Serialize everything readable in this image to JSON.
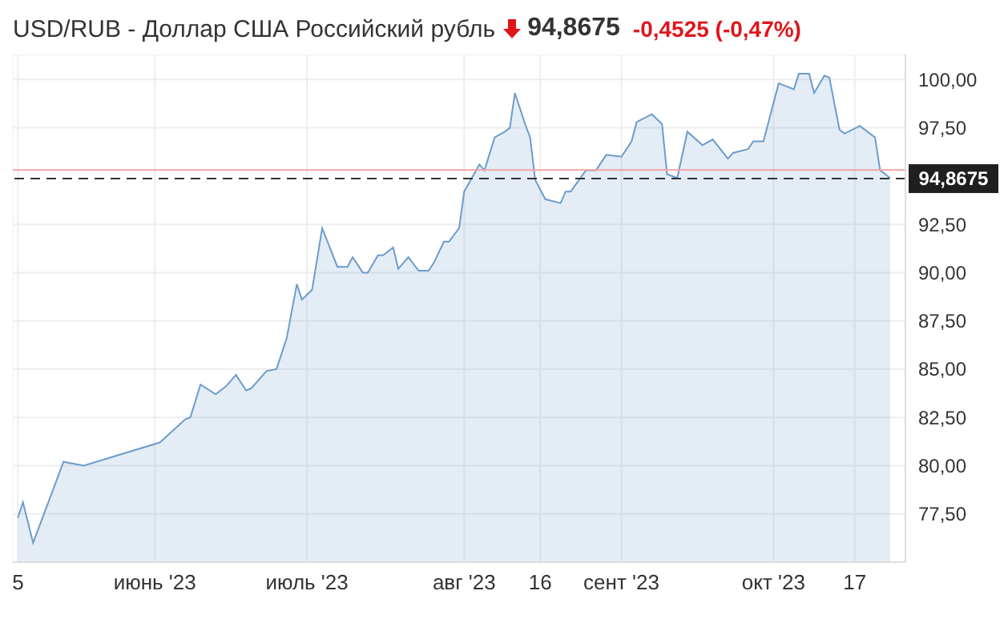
{
  "chart_data": {
    "type": "area",
    "title": "USD/RUB - Доллар США Российский рубль",
    "annotations": [
      "94,8675",
      "-0,4525 (-0,47%)"
    ],
    "x": [
      "2023-05-05",
      "2023-05-06",
      "2023-05-08",
      "2023-05-14",
      "2023-05-18",
      "2023-06-02",
      "2023-06-07",
      "2023-06-08",
      "2023-06-10",
      "2023-06-13",
      "2023-06-15",
      "2023-06-17",
      "2023-06-19",
      "2023-06-20",
      "2023-06-23",
      "2023-06-25",
      "2023-06-27",
      "2023-06-29",
      "2023-06-30",
      "2023-07-02",
      "2023-07-04",
      "2023-07-07",
      "2023-07-09",
      "2023-07-10",
      "2023-07-12",
      "2023-07-13",
      "2023-07-15",
      "2023-07-16",
      "2023-07-18",
      "2023-07-19",
      "2023-07-21",
      "2023-07-23",
      "2023-07-25",
      "2023-07-26",
      "2023-07-28",
      "2023-07-29",
      "2023-07-31",
      "2023-08-01",
      "2023-08-04",
      "2023-08-05",
      "2023-08-07",
      "2023-08-09",
      "2023-08-10",
      "2023-08-11",
      "2023-08-13",
      "2023-08-14",
      "2023-08-15",
      "2023-08-17",
      "2023-08-20",
      "2023-08-21",
      "2023-08-22",
      "2023-08-25",
      "2023-08-27",
      "2023-08-29",
      "2023-09-01",
      "2023-09-03",
      "2023-09-04",
      "2023-09-07",
      "2023-09-09",
      "2023-09-10",
      "2023-09-12",
      "2023-09-14",
      "2023-09-17",
      "2023-09-19",
      "2023-09-22",
      "2023-09-23",
      "2023-09-26",
      "2023-09-27",
      "2023-09-29",
      "2023-10-02",
      "2023-10-05",
      "2023-10-06",
      "2023-10-08",
      "2023-10-09",
      "2023-10-11",
      "2023-10-12",
      "2023-10-14",
      "2023-10-15",
      "2023-10-18",
      "2023-10-21",
      "2023-10-22",
      "2023-10-24"
    ],
    "series": [
      {
        "color": "#6c9ccb",
        "values": [
          77.3,
          78.1,
          76.0,
          80.2,
          80.0,
          81.2,
          82.4,
          82.5,
          84.2,
          83.7,
          84.1,
          84.7,
          83.9,
          84.0,
          84.9,
          85.0,
          86.6,
          89.4,
          88.6,
          89.1,
          92.3,
          90.3,
          90.3,
          90.8,
          90.0,
          90.0,
          90.9,
          90.9,
          91.3,
          90.2,
          90.8,
          90.1,
          90.1,
          90.5,
          91.6,
          91.6,
          92.3,
          94.2,
          95.6,
          95.3,
          97.0,
          97.3,
          97.5,
          99.3,
          97.7,
          97.0,
          94.8,
          93.8,
          93.6,
          94.2,
          94.2,
          95.3,
          95.3,
          96.1,
          96.0,
          96.8,
          97.8,
          98.2,
          97.7,
          95.1,
          94.9,
          97.3,
          96.6,
          96.9,
          95.9,
          96.2,
          96.4,
          96.8,
          96.8,
          99.8,
          99.5,
          100.3,
          100.3,
          99.3,
          100.2,
          100.1,
          97.4,
          97.2,
          97.6,
          97.0,
          95.3,
          94.9
        ]
      }
    ],
    "xlim": [
      "2023-05-04",
      "2023-10-27"
    ],
    "xticks": [
      {
        "value": "2023-05-05",
        "label": "5"
      },
      {
        "value": "2023-06-01",
        "label": "июнь '23"
      },
      {
        "value": "2023-07-01",
        "label": "июль '23"
      },
      {
        "value": "2023-08-01",
        "label": "авг '23"
      },
      {
        "value": "2023-08-16",
        "label": "16"
      },
      {
        "value": "2023-09-01",
        "label": "сент '23"
      },
      {
        "value": "2023-10-01",
        "label": "окт '23"
      },
      {
        "value": "2023-10-17",
        "label": "17"
      }
    ],
    "ylim": [
      75,
      101.3
    ],
    "yticks": [
      {
        "value": 77.5,
        "label": "77,50"
      },
      {
        "value": 80,
        "label": "80,00"
      },
      {
        "value": 82.5,
        "label": "82,50"
      },
      {
        "value": 85,
        "label": "85,00"
      },
      {
        "value": 87.5,
        "label": "87,50"
      },
      {
        "value": 90,
        "label": "90,00"
      },
      {
        "value": 92.5,
        "label": "92,50"
      },
      {
        "value": 97.5,
        "label": "97,50"
      },
      {
        "value": 100,
        "label": "100,00"
      }
    ],
    "ref_lines": [
      {
        "axis": "y",
        "value": 95.32,
        "color": "#f2a3a3",
        "line_style": "solid"
      },
      {
        "axis": "y",
        "value": 94.8675,
        "label": "94,8675",
        "color": "#333333",
        "line_style": "dashed"
      }
    ],
    "grid": true,
    "marker": "none",
    "line_style": "solid"
  }
}
